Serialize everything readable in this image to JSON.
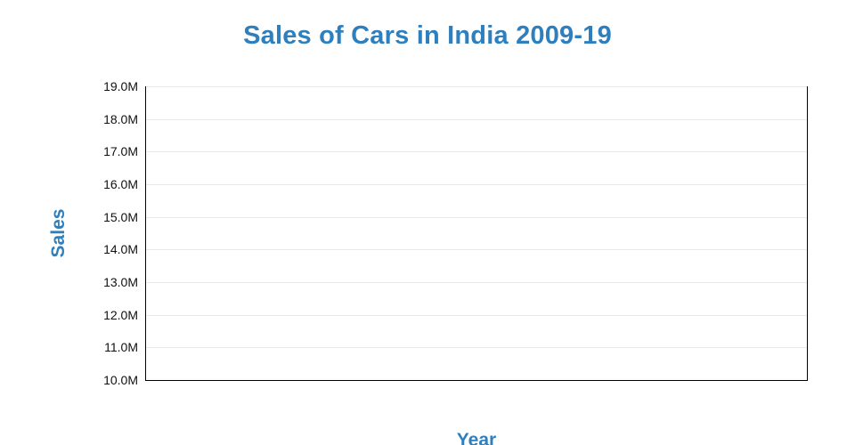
{
  "chart": {
    "title": "Sales of Cars in India 2009-19",
    "x_axis_title": "Year",
    "y_axis_title": "Sales"
  },
  "chart_data": {
    "type": "line",
    "title": "Sales of Cars in India 2009-19",
    "xlabel": "Year",
    "ylabel": "Sales",
    "series": [],
    "x_tick_labels": [],
    "y_tick_labels": [
      "19.0M",
      "18.0M",
      "17.0M",
      "16.0M",
      "15.0M",
      "14.0M",
      "13.0M",
      "12.0M",
      "11.0M",
      "10.0M"
    ],
    "ylim": [
      10000000,
      19000000
    ],
    "y_tick_interval": 1000000,
    "grid": "horizontal gridlines on",
    "legend": "none",
    "plot_content": "empty - no data series rendered"
  },
  "colors": {
    "accent_blue": "#2e7fbe",
    "gridline": "#e8eaea",
    "axis_line": "#000000",
    "tick_text": "#111111",
    "background": "#ffffff"
  }
}
